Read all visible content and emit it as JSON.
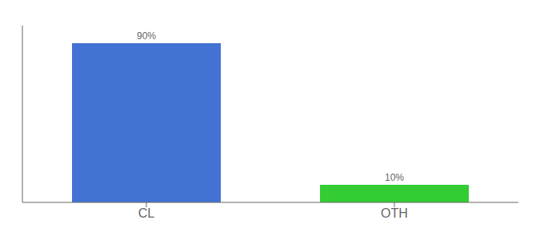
{
  "chart_data": {
    "type": "bar",
    "categories": [
      "CL",
      "OTH"
    ],
    "values": [
      90,
      10
    ],
    "value_labels": [
      "90%",
      "10%"
    ],
    "colors": [
      "#4472d4",
      "#33cc33"
    ],
    "ylim": [
      0,
      100
    ],
    "data_labels": true,
    "tick_labels": "x",
    "grid": false
  }
}
